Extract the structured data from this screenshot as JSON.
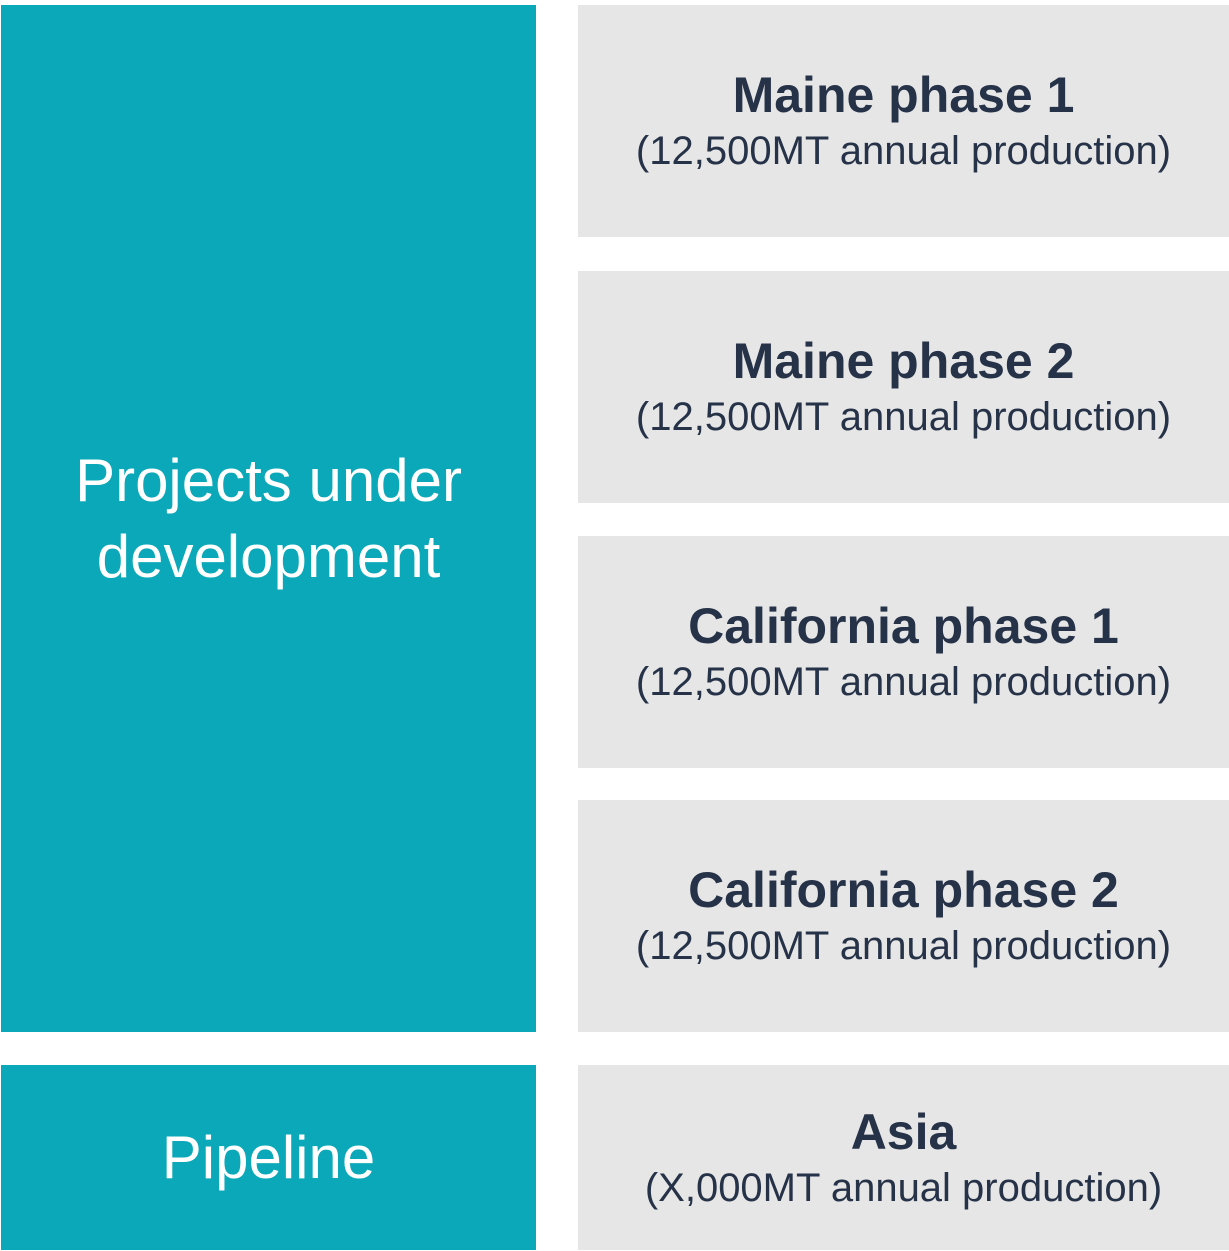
{
  "groups": [
    {
      "label": "Projects under development",
      "projects": [
        {
          "name": "Maine phase 1",
          "detail": "(12,500MT annual production)"
        },
        {
          "name": "Maine phase 2",
          "detail": "(12,500MT annual production)"
        },
        {
          "name": "California phase 1",
          "detail": "(12,500MT annual production)"
        },
        {
          "name": "California phase 2",
          "detail": "(12,500MT annual production)"
        }
      ]
    },
    {
      "label": "Pipeline",
      "projects": [
        {
          "name": "Asia",
          "detail": "(X,000MT annual production)"
        }
      ]
    }
  ]
}
